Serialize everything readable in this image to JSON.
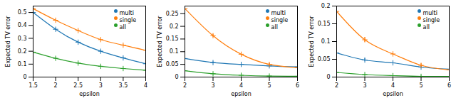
{
  "chart_data": [
    {
      "type": "line",
      "xlabel": "epsilon",
      "ylabel": "Expected TV error",
      "xlim": [
        1.5,
        4.0
      ],
      "ylim": [
        0.0,
        0.55
      ],
      "xticks": [
        1.5,
        2.0,
        2.5,
        3.0,
        3.5,
        4.0
      ],
      "yticks": [
        0,
        0.1,
        0.2,
        0.3,
        0.4,
        0.5
      ],
      "grid": false,
      "legend": "upper right",
      "marker": "plus",
      "x": [
        1.5,
        2.0,
        2.5,
        3.0,
        3.5,
        4.0
      ],
      "series": [
        {
          "name": "multi",
          "color": "#1f77b4",
          "values": [
            0.5,
            0.37,
            0.27,
            0.2,
            0.148,
            0.103
          ],
          "errors": [
            0.008,
            0.006,
            0.005,
            0.004,
            0.004,
            0.003
          ]
        },
        {
          "name": "single",
          "color": "#ff7f0e",
          "values": [
            0.53,
            0.44,
            0.36,
            0.29,
            0.247,
            0.207
          ],
          "errors": [
            0.005,
            0.005,
            0.005,
            0.004,
            0.004,
            0.004
          ]
        },
        {
          "name": "all",
          "color": "#2ca02c",
          "values": [
            0.193,
            0.145,
            0.108,
            0.083,
            0.066,
            0.053
          ],
          "errors": [
            0.003,
            0.002,
            0.002,
            0.002,
            0.002,
            0.002
          ]
        }
      ]
    },
    {
      "type": "line",
      "xlabel": "epsilon",
      "ylabel": "Expected TV error",
      "xlim": [
        2.0,
        6.0
      ],
      "ylim": [
        0.0,
        0.28
      ],
      "xticks": [
        2.0,
        3.0,
        4.0,
        5.0,
        6.0
      ],
      "yticks": [
        0,
        0.05,
        0.1,
        0.15,
        0.2,
        0.25
      ],
      "grid": false,
      "legend": "upper right",
      "marker": "plus",
      "x": [
        2.0,
        3.0,
        4.0,
        5.0,
        6.0
      ],
      "series": [
        {
          "name": "multi",
          "color": "#1f77b4",
          "values": [
            0.073,
            0.057,
            0.05,
            0.044,
            0.04
          ],
          "errors": [
            0.004,
            0.003,
            0.003,
            0.002,
            0.002
          ]
        },
        {
          "name": "single",
          "color": "#ff7f0e",
          "values": [
            0.27,
            0.163,
            0.09,
            0.05,
            0.037
          ],
          "errors": [
            0.006,
            0.006,
            0.005,
            0.004,
            0.003
          ]
        },
        {
          "name": "all",
          "color": "#2ca02c",
          "values": [
            0.025,
            0.013,
            0.007,
            0.004,
            0.003
          ],
          "errors": [
            0.001,
            0.001,
            0.001,
            0.001,
            0.001
          ]
        }
      ]
    },
    {
      "type": "line",
      "xlabel": "epsilon",
      "ylabel": "Expected TV error",
      "xlim": [
        2.0,
        6.0
      ],
      "ylim": [
        0.0,
        0.2
      ],
      "xticks": [
        2.0,
        3.0,
        4.0,
        5.0,
        6.0
      ],
      "yticks": [
        0,
        0.05,
        0.1,
        0.15,
        0.2
      ],
      "grid": false,
      "legend": "upper right",
      "marker": "plus",
      "x": [
        2.0,
        3.0,
        4.0,
        5.0,
        6.0
      ],
      "series": [
        {
          "name": "multi",
          "color": "#1f77b4",
          "values": [
            0.068,
            0.048,
            0.04,
            0.028,
            0.022
          ],
          "errors": [
            0.006,
            0.004,
            0.003,
            0.003,
            0.002
          ]
        },
        {
          "name": "single",
          "color": "#ff7f0e",
          "values": [
            0.185,
            0.105,
            0.065,
            0.033,
            0.02
          ],
          "errors": [
            0.008,
            0.007,
            0.006,
            0.005,
            0.004
          ]
        },
        {
          "name": "all",
          "color": "#2ca02c",
          "values": [
            0.013,
            0.007,
            0.004,
            0.002,
            0.002
          ],
          "errors": [
            0.001,
            0.001,
            0.001,
            0.001,
            0.001
          ]
        }
      ]
    }
  ]
}
